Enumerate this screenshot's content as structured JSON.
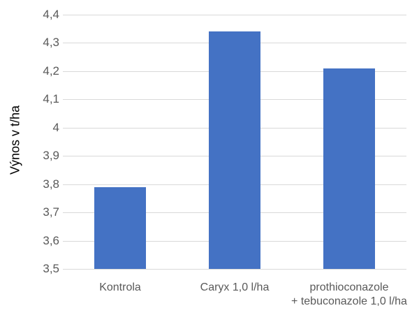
{
  "chart_data": {
    "type": "bar",
    "title": "",
    "xlabel": "",
    "ylabel": "Výnos v t/ha",
    "categories": [
      "Kontrola",
      "Caryx 1,0 l/ha",
      "prothioconazole + tebuconazole 1,0 l/ha"
    ],
    "values": [
      3.79,
      4.34,
      4.21
    ],
    "ylim": [
      3.5,
      4.4
    ],
    "yticks": [
      "3,5",
      "3,6",
      "3,7",
      "3,8",
      "3,9",
      "4",
      "4,1",
      "4,2",
      "4,3",
      "4,4"
    ],
    "grid": true,
    "legend": "none",
    "bar_color": "#4472c4"
  },
  "labels": {
    "ylabel": "Výnos v t/ha",
    "cat0": "Kontrola",
    "cat1": "Caryx 1,0 l/ha",
    "cat2_line1": "prothioconazole",
    "cat2_line2": "+ tebuconazole 1,0 l/ha"
  }
}
